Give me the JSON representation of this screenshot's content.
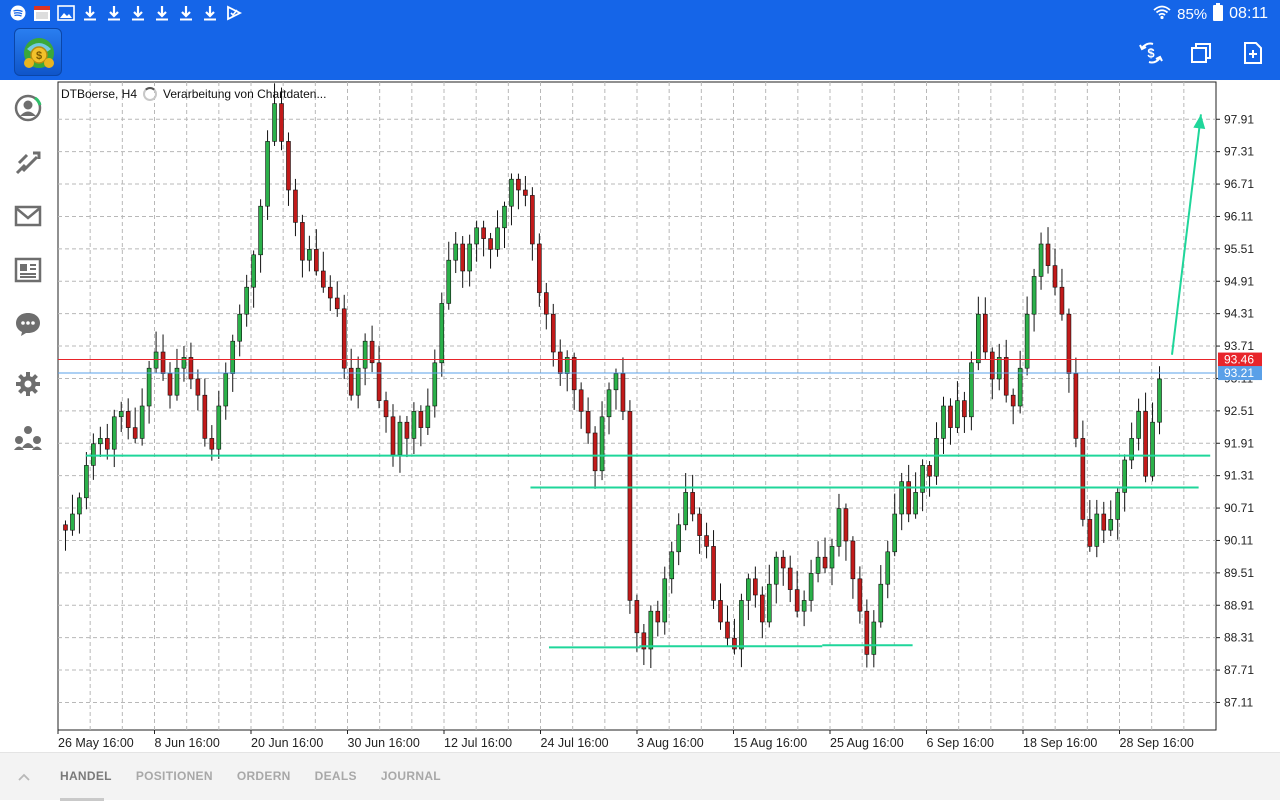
{
  "status_bar": {
    "battery_percent": "85%",
    "time": "08:11",
    "notification_icons": [
      "spotify-icon",
      "calendar-icon",
      "image-icon",
      "download-icon",
      "download-icon",
      "download-icon",
      "download-icon",
      "download-icon",
      "download-icon",
      "send-check-icon"
    ]
  },
  "app_bar": {
    "icons": [
      "metatrader-logo-icon",
      "dollar-sync-icon",
      "windows-icon",
      "new-document-icon"
    ]
  },
  "sidebar": {
    "items": [
      {
        "icon": "account-icon"
      },
      {
        "icon": "trade-icon"
      },
      {
        "icon": "mail-icon"
      },
      {
        "icon": "news-icon"
      },
      {
        "icon": "chat-icon"
      },
      {
        "icon": "settings-icon"
      },
      {
        "icon": "community-icon"
      }
    ]
  },
  "chart": {
    "symbol_timeframe": "DTBoerse, H4",
    "status_text": "Verarbeitung von Chartdaten..."
  },
  "chart_data": {
    "type": "candlestick",
    "title": "DTBoerse, H4",
    "x_tick_labels": [
      "26 May 16:00",
      "8 Jun 16:00",
      "20 Jun 16:00",
      "30 Jun 16:00",
      "12 Jul 16:00",
      "24 Jul 16:00",
      "3 Aug 16:00",
      "15 Aug 16:00",
      "25 Aug 16:00",
      "6 Sep 16:00",
      "18 Sep 16:00",
      "28 Sep 16:00"
    ],
    "y_tick_labels": [
      "97.91",
      "97.31",
      "96.71",
      "96.11",
      "95.51",
      "94.91",
      "94.31",
      "93.71",
      "93.11",
      "92.51",
      "91.91",
      "91.31",
      "90.71",
      "90.11",
      "89.51",
      "88.91",
      "88.31",
      "87.71",
      "87.11"
    ],
    "ylim": [
      86.6,
      98.6
    ],
    "grid": true,
    "price_levels": [
      {
        "label": "93.46",
        "value": 93.46,
        "color": "#e8242a"
      },
      {
        "label": "93.21",
        "value": 93.21,
        "color": "#5aa0e8"
      }
    ],
    "trend_lines": [
      {
        "x1": 0.024,
        "y1": 91.68,
        "x2": 0.995,
        "y2": 91.68,
        "color": "#1fd69a"
      },
      {
        "x1": 0.408,
        "y1": 91.09,
        "x2": 0.985,
        "y2": 91.09,
        "color": "#1fd69a"
      },
      {
        "x1": 0.424,
        "y1": 88.13,
        "x2": 0.503,
        "y2": 88.13,
        "color": "#1fd69a"
      },
      {
        "x1": 0.502,
        "y1": 88.15,
        "x2": 0.66,
        "y2": 88.15,
        "color": "#1fd69a"
      },
      {
        "x1": 0.66,
        "y1": 88.17,
        "x2": 0.738,
        "y2": 88.17,
        "color": "#1fd69a"
      }
    ],
    "arrow": {
      "x1": 0.962,
      "y1": 93.55,
      "x2": 0.987,
      "y2": 98.0,
      "color": "#1fd69a"
    },
    "closes_approx": [
      90.3,
      90.6,
      90.9,
      91.5,
      91.9,
      92.0,
      91.8,
      92.4,
      92.5,
      92.2,
      92.0,
      92.6,
      93.3,
      93.6,
      93.2,
      92.8,
      93.3,
      93.5,
      93.1,
      92.8,
      92.0,
      91.8,
      92.6,
      93.2,
      93.8,
      94.3,
      94.8,
      95.4,
      96.3,
      97.5,
      98.2,
      97.5,
      96.6,
      96.0,
      95.3,
      95.5,
      95.1,
      94.8,
      94.6,
      94.4,
      93.3,
      92.8,
      93.3,
      93.8,
      93.4,
      92.7,
      92.4,
      91.7,
      92.3,
      92.0,
      92.5,
      92.2,
      92.6,
      93.4,
      94.5,
      95.3,
      95.6,
      95.1,
      95.6,
      95.9,
      95.7,
      95.5,
      95.9,
      96.3,
      96.8,
      96.6,
      96.5,
      95.6,
      94.7,
      94.3,
      93.6,
      93.2,
      93.5,
      92.9,
      92.5,
      92.1,
      91.4,
      92.4,
      92.9,
      93.2,
      92.5,
      89.0,
      88.4,
      88.1,
      88.8,
      88.6,
      89.4,
      89.9,
      90.4,
      91.0,
      90.6,
      90.2,
      90.0,
      89.0,
      88.6,
      88.3,
      88.1,
      89.0,
      89.4,
      89.1,
      88.6,
      89.3,
      89.8,
      89.6,
      89.2,
      88.8,
      89.0,
      89.5,
      89.8,
      89.6,
      90.0,
      90.7,
      90.1,
      89.4,
      88.8,
      88.0,
      88.6,
      89.3,
      89.9,
      90.6,
      91.2,
      90.6,
      91.0,
      91.5,
      91.3,
      92.0,
      92.6,
      92.2,
      92.7,
      92.4,
      93.4,
      94.3,
      93.6,
      93.1,
      93.5,
      92.8,
      92.6,
      93.3,
      94.3,
      95.0,
      95.6,
      95.2,
      94.8,
      94.3,
      93.2,
      92.0,
      90.5,
      90.0,
      90.6,
      90.3,
      90.5,
      91.0,
      91.6,
      92.0,
      92.5,
      91.3,
      92.3,
      93.1
    ]
  },
  "bottom_tabs": [
    {
      "label": "HANDEL",
      "active": true
    },
    {
      "label": "POSITIONEN",
      "active": false
    },
    {
      "label": "ORDERN",
      "active": false
    },
    {
      "label": "DEALS",
      "active": false
    },
    {
      "label": "JOURNAL",
      "active": false
    }
  ]
}
